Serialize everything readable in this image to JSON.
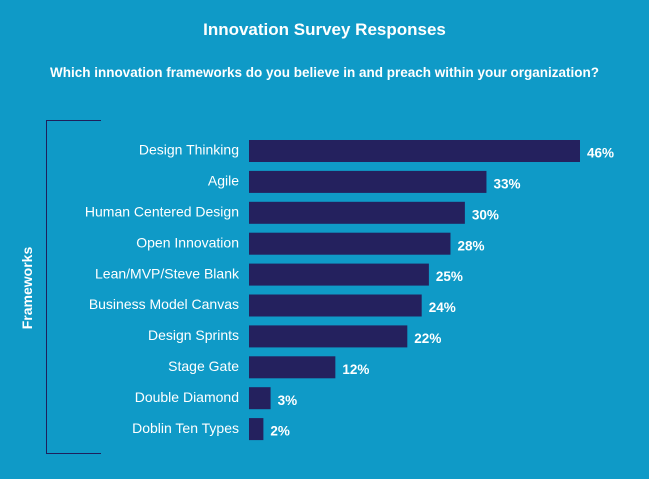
{
  "chart_data": {
    "type": "bar",
    "orientation": "horizontal",
    "title": "Innovation Survey Responses",
    "subtitle": "Which innovation frameworks do you believe in and preach within your organization?",
    "ylabel": "Frameworks",
    "xlabel": "",
    "categories": [
      "Design Thinking",
      "Agile",
      "Human Centered Design",
      "Open Innovation",
      "Lean/MVP/Steve Blank",
      "Business Model Canvas",
      "Design Sprints",
      "Stage Gate",
      "Double Diamond",
      "Doblin Ten Types"
    ],
    "values": [
      46,
      33,
      30,
      28,
      25,
      24,
      22,
      12,
      3,
      2
    ],
    "value_labels": [
      "46%",
      "33%",
      "30%",
      "28%",
      "25%",
      "24%",
      "22%",
      "12%",
      "3%",
      "2%"
    ],
    "grid": false,
    "legend": "none"
  },
  "colors": {
    "background": "#0f9ac7",
    "bar": "#24215e",
    "text": "#ffffff"
  }
}
